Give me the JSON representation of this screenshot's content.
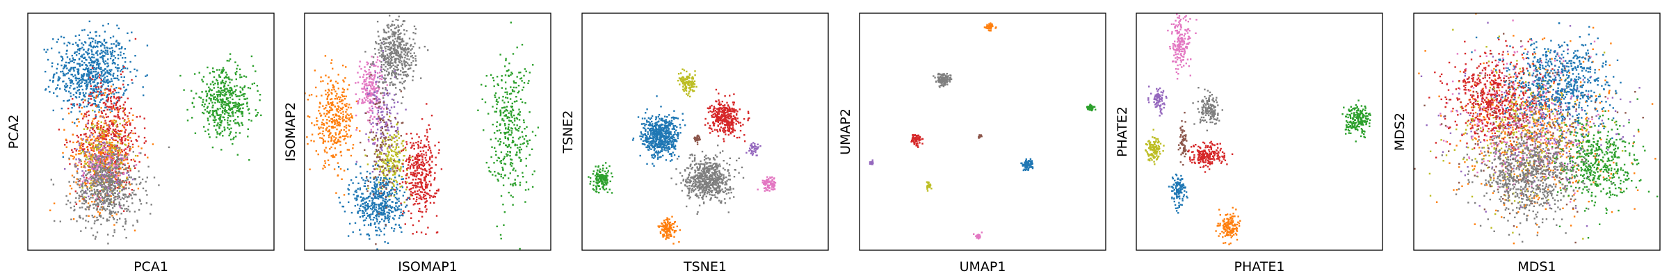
{
  "palette": {
    "blue": "#1f77b4",
    "orange": "#ff7f0e",
    "green": "#2ca02c",
    "red": "#d62728",
    "purple": "#9467bd",
    "brown": "#8c564b",
    "pink": "#e377c2",
    "gray": "#7f7f7f",
    "olive": "#bcbd22"
  },
  "chart_data": [
    {
      "type": "scatter",
      "xlabel": "PCA1",
      "ylabel": "PCA2",
      "ticks": "hidden",
      "xlim": [
        0,
        1
      ],
      "ylim": [
        0,
        1
      ],
      "clusters": [
        {
          "color": "blue",
          "cx": 0.26,
          "cy": 0.75,
          "sx": 0.075,
          "sy": 0.085,
          "n": 700
        },
        {
          "color": "red",
          "cx": 0.33,
          "cy": 0.48,
          "sx": 0.065,
          "sy": 0.12,
          "n": 500
        },
        {
          "color": "orange",
          "cx": 0.3,
          "cy": 0.4,
          "sx": 0.065,
          "sy": 0.11,
          "n": 350
        },
        {
          "color": "olive",
          "cx": 0.31,
          "cy": 0.4,
          "sx": 0.05,
          "sy": 0.08,
          "n": 150
        },
        {
          "color": "purple",
          "cx": 0.3,
          "cy": 0.36,
          "sx": 0.05,
          "sy": 0.07,
          "n": 120
        },
        {
          "color": "pink",
          "cx": 0.31,
          "cy": 0.34,
          "sx": 0.05,
          "sy": 0.06,
          "n": 120
        },
        {
          "color": "gray",
          "cx": 0.32,
          "cy": 0.26,
          "sx": 0.07,
          "sy": 0.08,
          "n": 600
        },
        {
          "color": "green",
          "cx": 0.8,
          "cy": 0.62,
          "sx": 0.06,
          "sy": 0.07,
          "n": 450
        }
      ]
    },
    {
      "type": "scatter",
      "xlabel": "ISOMAP1",
      "ylabel": "ISOMAP2",
      "ticks": "hidden",
      "xlim": [
        0,
        1
      ],
      "ylim": [
        0,
        1
      ],
      "clusters": [
        {
          "color": "orange",
          "cx": 0.12,
          "cy": 0.55,
          "sx": 0.04,
          "sy": 0.09,
          "n": 350
        },
        {
          "color": "pink",
          "cx": 0.27,
          "cy": 0.68,
          "sx": 0.025,
          "sy": 0.07,
          "n": 200
        },
        {
          "color": "purple",
          "cx": 0.32,
          "cy": 0.55,
          "sx": 0.03,
          "sy": 0.12,
          "n": 150
        },
        {
          "color": "gray",
          "cx": 0.37,
          "cy": 0.82,
          "sx": 0.04,
          "sy": 0.07,
          "n": 450
        },
        {
          "color": "olive",
          "cx": 0.35,
          "cy": 0.38,
          "sx": 0.035,
          "sy": 0.06,
          "n": 200
        },
        {
          "color": "red",
          "cx": 0.47,
          "cy": 0.32,
          "sx": 0.035,
          "sy": 0.09,
          "n": 350
        },
        {
          "color": "blue",
          "cx": 0.3,
          "cy": 0.2,
          "sx": 0.05,
          "sy": 0.07,
          "n": 450
        },
        {
          "color": "brown",
          "cx": 0.31,
          "cy": 0.45,
          "sx": 0.03,
          "sy": 0.12,
          "n": 120
        },
        {
          "color": "green",
          "cx": 0.83,
          "cy": 0.52,
          "sx": 0.045,
          "sy": 0.15,
          "n": 350
        }
      ]
    },
    {
      "type": "scatter",
      "xlabel": "TSNE1",
      "ylabel": "TSNE2",
      "ticks": "hidden",
      "xlim": [
        0,
        1
      ],
      "ylim": [
        0,
        1
      ],
      "clusters": [
        {
          "color": "blue",
          "cx": 0.32,
          "cy": 0.48,
          "sx": 0.038,
          "sy": 0.045,
          "n": 550
        },
        {
          "color": "red",
          "cx": 0.58,
          "cy": 0.56,
          "sx": 0.03,
          "sy": 0.035,
          "n": 350
        },
        {
          "color": "olive",
          "cx": 0.43,
          "cy": 0.7,
          "sx": 0.018,
          "sy": 0.02,
          "n": 120
        },
        {
          "color": "gray",
          "cx": 0.51,
          "cy": 0.3,
          "sx": 0.045,
          "sy": 0.045,
          "n": 600
        },
        {
          "color": "green",
          "cx": 0.08,
          "cy": 0.3,
          "sx": 0.02,
          "sy": 0.025,
          "n": 150
        },
        {
          "color": "orange",
          "cx": 0.35,
          "cy": 0.09,
          "sx": 0.018,
          "sy": 0.022,
          "n": 120
        },
        {
          "color": "pink",
          "cx": 0.76,
          "cy": 0.28,
          "sx": 0.015,
          "sy": 0.015,
          "n": 80
        },
        {
          "color": "purple",
          "cx": 0.7,
          "cy": 0.43,
          "sx": 0.01,
          "sy": 0.012,
          "n": 40
        },
        {
          "color": "brown",
          "cx": 0.47,
          "cy": 0.47,
          "sx": 0.008,
          "sy": 0.008,
          "n": 30
        }
      ]
    },
    {
      "type": "scatter",
      "xlabel": "UMAP1",
      "ylabel": "UMAP2",
      "ticks": "hidden",
      "xlim": [
        0,
        1
      ],
      "ylim": [
        0,
        1
      ],
      "clusters": [
        {
          "color": "orange",
          "cx": 0.53,
          "cy": 0.94,
          "sx": 0.008,
          "sy": 0.008,
          "n": 40
        },
        {
          "color": "gray",
          "cx": 0.34,
          "cy": 0.72,
          "sx": 0.015,
          "sy": 0.013,
          "n": 120
        },
        {
          "color": "green",
          "cx": 0.94,
          "cy": 0.6,
          "sx": 0.008,
          "sy": 0.008,
          "n": 40
        },
        {
          "color": "red",
          "cx": 0.23,
          "cy": 0.47,
          "sx": 0.01,
          "sy": 0.012,
          "n": 60
        },
        {
          "color": "brown",
          "cx": 0.49,
          "cy": 0.48,
          "sx": 0.004,
          "sy": 0.004,
          "n": 10
        },
        {
          "color": "blue",
          "cx": 0.68,
          "cy": 0.36,
          "sx": 0.012,
          "sy": 0.012,
          "n": 80
        },
        {
          "color": "purple",
          "cx": 0.05,
          "cy": 0.37,
          "sx": 0.004,
          "sy": 0.004,
          "n": 12
        },
        {
          "color": "olive",
          "cx": 0.28,
          "cy": 0.27,
          "sx": 0.006,
          "sy": 0.008,
          "n": 25
        },
        {
          "color": "pink",
          "cx": 0.48,
          "cy": 0.06,
          "sx": 0.006,
          "sy": 0.006,
          "n": 25
        }
      ]
    },
    {
      "type": "scatter",
      "xlabel": "PHATE1",
      "ylabel": "PHATE2",
      "ticks": "hidden",
      "xlim": [
        0,
        1
      ],
      "ylim": [
        0,
        1
      ],
      "clusters": [
        {
          "color": "pink",
          "cx": 0.18,
          "cy": 0.87,
          "sx": 0.02,
          "sy": 0.06,
          "n": 180
        },
        {
          "color": "purple",
          "cx": 0.09,
          "cy": 0.63,
          "sx": 0.015,
          "sy": 0.025,
          "n": 80
        },
        {
          "color": "gray",
          "cx": 0.3,
          "cy": 0.59,
          "sx": 0.022,
          "sy": 0.03,
          "n": 150
        },
        {
          "color": "green",
          "cx": 0.9,
          "cy": 0.55,
          "sx": 0.025,
          "sy": 0.03,
          "n": 200
        },
        {
          "color": "olive",
          "cx": 0.07,
          "cy": 0.43,
          "sx": 0.015,
          "sy": 0.025,
          "n": 120
        },
        {
          "color": "brown",
          "cx": 0.19,
          "cy": 0.45,
          "sx": 0.008,
          "sy": 0.04,
          "n": 60
        },
        {
          "color": "red",
          "cx": 0.29,
          "cy": 0.4,
          "sx": 0.035,
          "sy": 0.025,
          "n": 200
        },
        {
          "color": "blue",
          "cx": 0.17,
          "cy": 0.25,
          "sx": 0.015,
          "sy": 0.03,
          "n": 120
        },
        {
          "color": "orange",
          "cx": 0.38,
          "cy": 0.1,
          "sx": 0.018,
          "sy": 0.03,
          "n": 150
        }
      ]
    },
    {
      "type": "scatter",
      "xlabel": "MDS1",
      "ylabel": "MDS2",
      "ticks": "hidden",
      "xlim": [
        0,
        1
      ],
      "ylim": [
        0,
        1
      ],
      "clusters": [
        {
          "color": "orange",
          "cx": 0.5,
          "cy": 0.5,
          "sx": 0.16,
          "sy": 0.17,
          "n": 500
        },
        {
          "color": "purple",
          "cx": 0.5,
          "cy": 0.52,
          "sx": 0.15,
          "sy": 0.15,
          "n": 300
        },
        {
          "color": "olive",
          "cx": 0.45,
          "cy": 0.5,
          "sx": 0.15,
          "sy": 0.15,
          "n": 300
        },
        {
          "color": "pink",
          "cx": 0.42,
          "cy": 0.55,
          "sx": 0.13,
          "sy": 0.14,
          "n": 300
        },
        {
          "color": "brown",
          "cx": 0.48,
          "cy": 0.5,
          "sx": 0.15,
          "sy": 0.15,
          "n": 250
        },
        {
          "color": "red",
          "cx": 0.32,
          "cy": 0.64,
          "sx": 0.09,
          "sy": 0.09,
          "n": 500
        },
        {
          "color": "blue",
          "cx": 0.6,
          "cy": 0.71,
          "sx": 0.1,
          "sy": 0.09,
          "n": 600
        },
        {
          "color": "green",
          "cx": 0.74,
          "cy": 0.36,
          "sx": 0.08,
          "sy": 0.09,
          "n": 450
        },
        {
          "color": "gray",
          "cx": 0.47,
          "cy": 0.31,
          "sx": 0.1,
          "sy": 0.09,
          "n": 700
        }
      ]
    }
  ]
}
